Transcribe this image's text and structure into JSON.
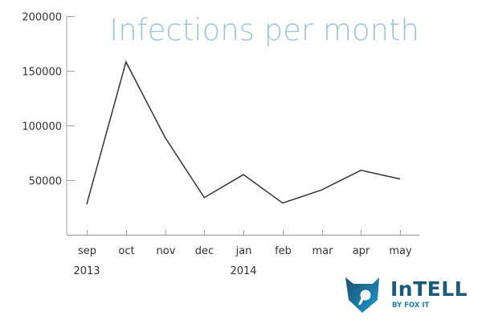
{
  "chart_data": {
    "type": "line",
    "title": "Infections per month",
    "xlabel": "",
    "ylabel": "",
    "categories": [
      "sep",
      "oct",
      "nov",
      "dec",
      "jan",
      "feb",
      "mar",
      "apr",
      "may"
    ],
    "year_labels": [
      {
        "index": 0,
        "label": "2013"
      },
      {
        "index": 4,
        "label": "2014"
      }
    ],
    "series": [
      {
        "name": "Infections",
        "values": [
          28000,
          158000,
          89000,
          34000,
          55000,
          29000,
          41000,
          59000,
          51000
        ]
      }
    ],
    "yticks": [
      50000,
      100000,
      150000,
      200000
    ],
    "ylim": [
      0,
      200000
    ],
    "grid": false,
    "legend": null
  },
  "colors": {
    "line": "#333333",
    "axis": "#a0a0a0",
    "title": "#9cc6d6",
    "tick_label": "#333333",
    "logo_dark": "#1b5a79",
    "logo_light": "#1b8fbf"
  },
  "logo": {
    "name": "InTELL",
    "tagline": "BY FOX IT"
  }
}
